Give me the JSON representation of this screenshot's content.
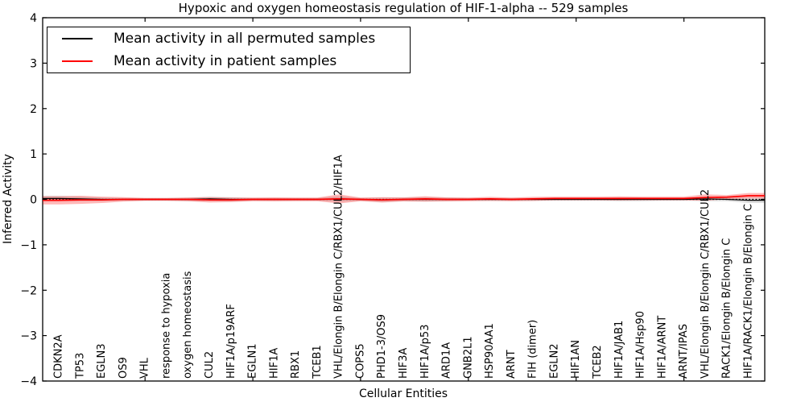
{
  "chart_data": {
    "type": "line",
    "title": "Hypoxic and oxygen homeostasis regulation of HIF-1-alpha -- 529 samples",
    "xlabel": "Cellular Entities",
    "ylabel": "Inferred Activity",
    "ylim": [
      -4,
      4
    ],
    "yticks": [
      -4,
      -3,
      -2,
      -1,
      0,
      1,
      2,
      3,
      4
    ],
    "xlim": [
      0.25,
      33.75
    ],
    "xticks": [
      5,
      10,
      15,
      20,
      25,
      30
    ],
    "grid": false,
    "legend_position": "upper left",
    "zero_line_style": "dotted",
    "categories": [
      "CDKN2A",
      "TP53",
      "EGLN3",
      "OS9",
      "VHL",
      "response to hypoxia",
      "oxygen homeostasis",
      "CUL2",
      "HIF1A/p19ARF",
      "EGLN1",
      "HIF1A",
      "RBX1",
      "TCEB1",
      "VHL/Elongin B/Elongin C/RBX1/CUL2/HIF1A",
      "COPS5",
      "PHD1-3/OS9",
      "HIF3A",
      "HIF1A/p53",
      "ARD1A",
      "GNB2L1",
      "HSP90AA1",
      "ARNT",
      "FIH (dimer)",
      "EGLN2",
      "HIF1AN",
      "TCEB2",
      "HIF1A/JAB1",
      "HIF1A/Hsp90",
      "HIF1A/ARNT",
      "ARNT/IPAS",
      "VHL/Elongin B/Elongin C/RBX1/CUL2",
      "RACK1/Elongin B/Elongin C",
      "HIF1A/RACK1/Elongin B/Elongin C"
    ],
    "series": [
      {
        "name": "Mean activity in all permuted samples",
        "color": "#000000",
        "band_color": "#000000",
        "band_opacity": 0.13,
        "values": [
          0.02,
          0.01,
          0,
          0,
          0,
          0,
          0,
          0.01,
          0,
          0,
          0,
          0,
          0,
          0.01,
          0,
          -0.01,
          0,
          0,
          0,
          0,
          0,
          0,
          0,
          0,
          0,
          0,
          0,
          0,
          0,
          0,
          0.01,
          0,
          -0.02
        ],
        "band": [
          0.06,
          0.05,
          0.04,
          0.03,
          0.03,
          0.03,
          0.04,
          0.05,
          0.05,
          0.03,
          0.03,
          0.03,
          0.03,
          0.06,
          0.03,
          0.05,
          0.04,
          0.05,
          0.04,
          0.03,
          0.03,
          0.03,
          0.03,
          0.03,
          0.03,
          0.03,
          0.04,
          0.04,
          0.03,
          0.03,
          0.05,
          0.04,
          0.06
        ]
      },
      {
        "name": "Mean activity in patient samples",
        "color": "#ff0000",
        "band_color": "#ff0000",
        "band_opacity": 0.28,
        "values": [
          -0.02,
          -0.01,
          -0.01,
          0,
          0,
          0,
          0,
          -0.01,
          -0.01,
          0,
          0,
          0,
          0,
          0.01,
          0,
          -0.01,
          0,
          0.01,
          0,
          0,
          0.01,
          0,
          0.01,
          0.02,
          0.02,
          0.02,
          0.02,
          0.02,
          0.02,
          0.02,
          0.04,
          0.05,
          0.08
        ],
        "band": [
          0.09,
          0.09,
          0.07,
          0.05,
          0.03,
          0.03,
          0.04,
          0.06,
          0.05,
          0.04,
          0.045,
          0.04,
          0.04,
          0.1,
          0.04,
          0.06,
          0.045,
          0.06,
          0.045,
          0.04,
          0.045,
          0.04,
          0.045,
          0.04,
          0.04,
          0.04,
          0.045,
          0.04,
          0.04,
          0.04,
          0.07,
          0.045,
          0.06
        ]
      }
    ]
  }
}
